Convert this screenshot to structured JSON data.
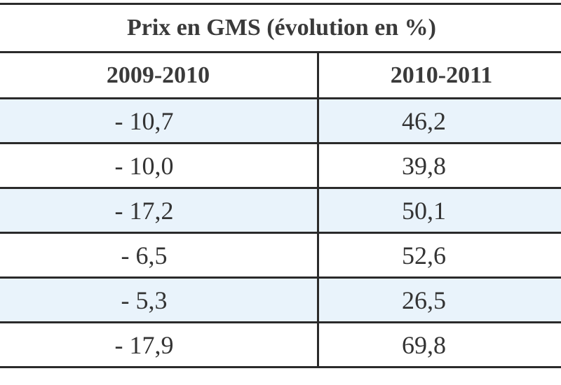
{
  "table": {
    "title": "Prix en GMS (évolution en %)",
    "columns": [
      "2009-2010",
      "2010-2011"
    ],
    "rows": [
      [
        "- 10,7",
        "46,2"
      ],
      [
        "- 10,0",
        "39,8"
      ],
      [
        "- 17,2",
        "50,1"
      ],
      [
        "- 6,5",
        "52,6"
      ],
      [
        "- 5,3",
        "26,5"
      ],
      [
        "- 17,9",
        "69,8"
      ]
    ]
  },
  "colors": {
    "stripe": "#e9f3fb",
    "border": "#2a2a2a",
    "text": "#333333"
  }
}
